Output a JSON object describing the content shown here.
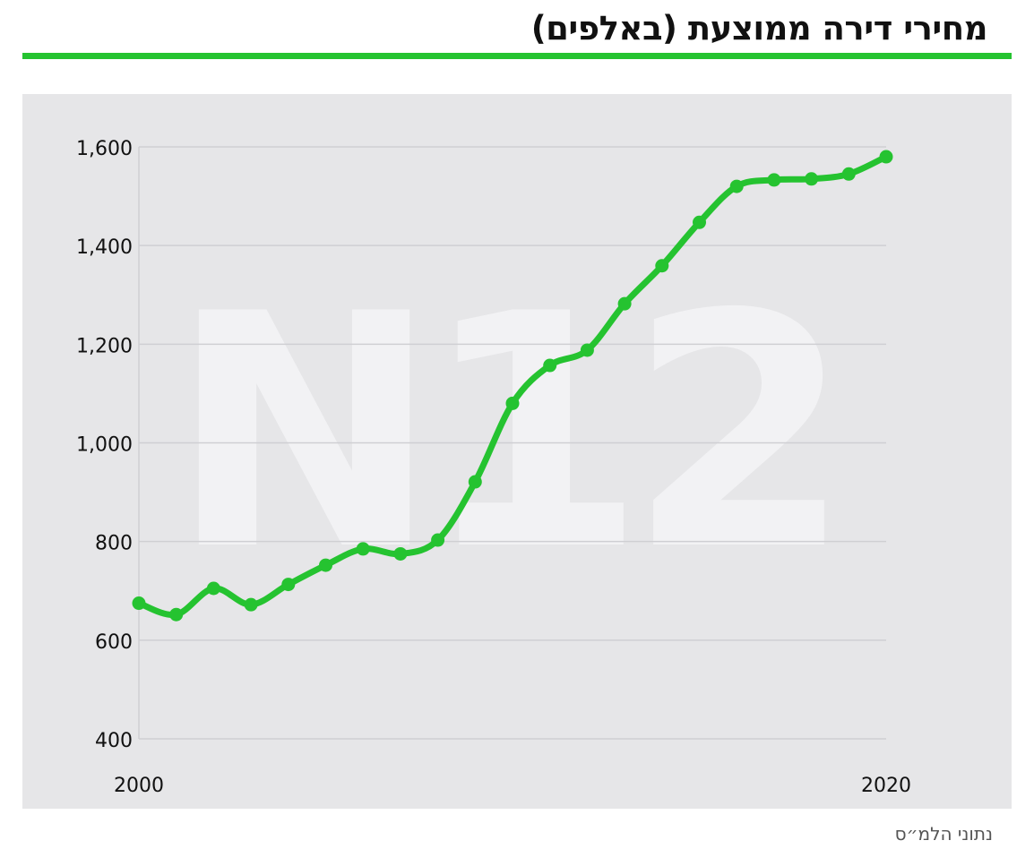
{
  "header": {
    "title": "מחירי דירה ממוצעת (באלפים)"
  },
  "footer": {
    "source": "נתוני הלמ״ס"
  },
  "watermark": {
    "text": "N12"
  },
  "colors": {
    "accent": "#25c330",
    "line": "#25c330",
    "panel": "#e6e6e8",
    "grid": "#cfcfd3",
    "watermark": "#f2f2f4"
  },
  "chart_data": {
    "type": "line",
    "title": "מחירי דירה ממוצעת (באלפים)",
    "xlabel": "",
    "ylabel": "",
    "x": [
      2000,
      2001,
      2002,
      2003,
      2004,
      2005,
      2006,
      2007,
      2008,
      2009,
      2010,
      2011,
      2012,
      2013,
      2014,
      2015,
      2016,
      2017,
      2018,
      2019,
      2020
    ],
    "series": [
      {
        "values": [
          675,
          652,
          705,
          672,
          713,
          752,
          785,
          775,
          803,
          921,
          1080,
          1157,
          1188,
          1282,
          1359,
          1447,
          1520,
          1533,
          1535,
          1545,
          1580
        ]
      }
    ],
    "ylim": [
      400,
      1600
    ],
    "y_ticks": [
      400,
      600,
      800,
      1000,
      1200,
      1400,
      1600
    ],
    "y_tick_labels": [
      "400",
      "600",
      "800",
      "1,000",
      "1,200",
      "1,400",
      "1,600"
    ],
    "x_tick_labels": [
      {
        "x": 2000,
        "label": "2000"
      },
      {
        "x": 2020,
        "label": "2020"
      }
    ],
    "grid": true,
    "legend": "none"
  }
}
